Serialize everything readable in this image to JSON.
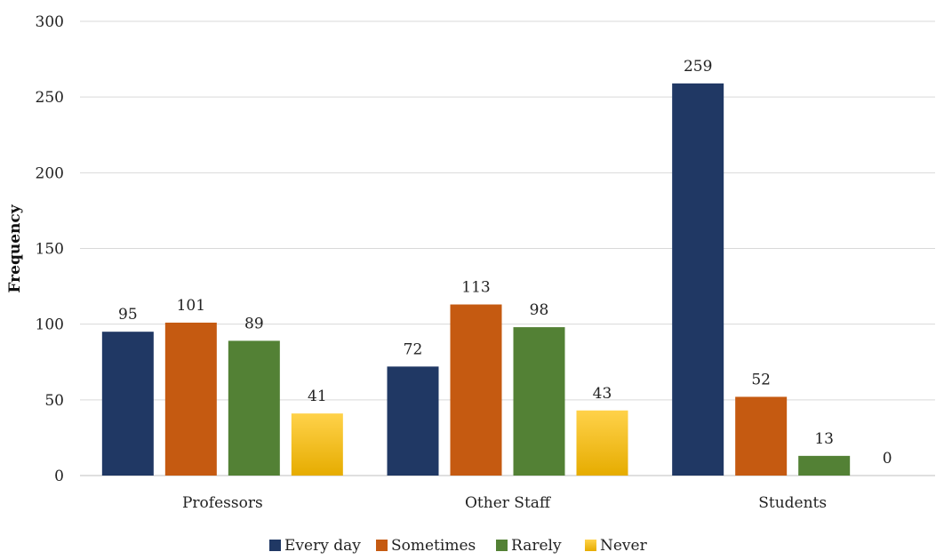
{
  "chart_data": {
    "type": "bar",
    "categories": [
      "Professors",
      "Other Staff",
      "Students"
    ],
    "series": [
      {
        "name": "Every day",
        "values": [
          95,
          72,
          259
        ],
        "color": "#203864"
      },
      {
        "name": "Sometimes",
        "values": [
          101,
          113,
          52
        ],
        "color": "#c55a11"
      },
      {
        "name": "Rarely",
        "values": [
          89,
          98,
          13
        ],
        "color": "#538135"
      },
      {
        "name": "Never",
        "values": [
          41,
          43,
          0
        ],
        "color": "#ffc000",
        "gradient": [
          "#ffd24a",
          "#e6ac00"
        ]
      }
    ],
    "title": "",
    "xlabel": "",
    "ylabel": "Frequency",
    "ylim": [
      0,
      300
    ],
    "yticks": [
      "0",
      "50",
      "100",
      "150",
      "200",
      "250",
      "300"
    ],
    "grid": true,
    "legend": "bottom"
  }
}
